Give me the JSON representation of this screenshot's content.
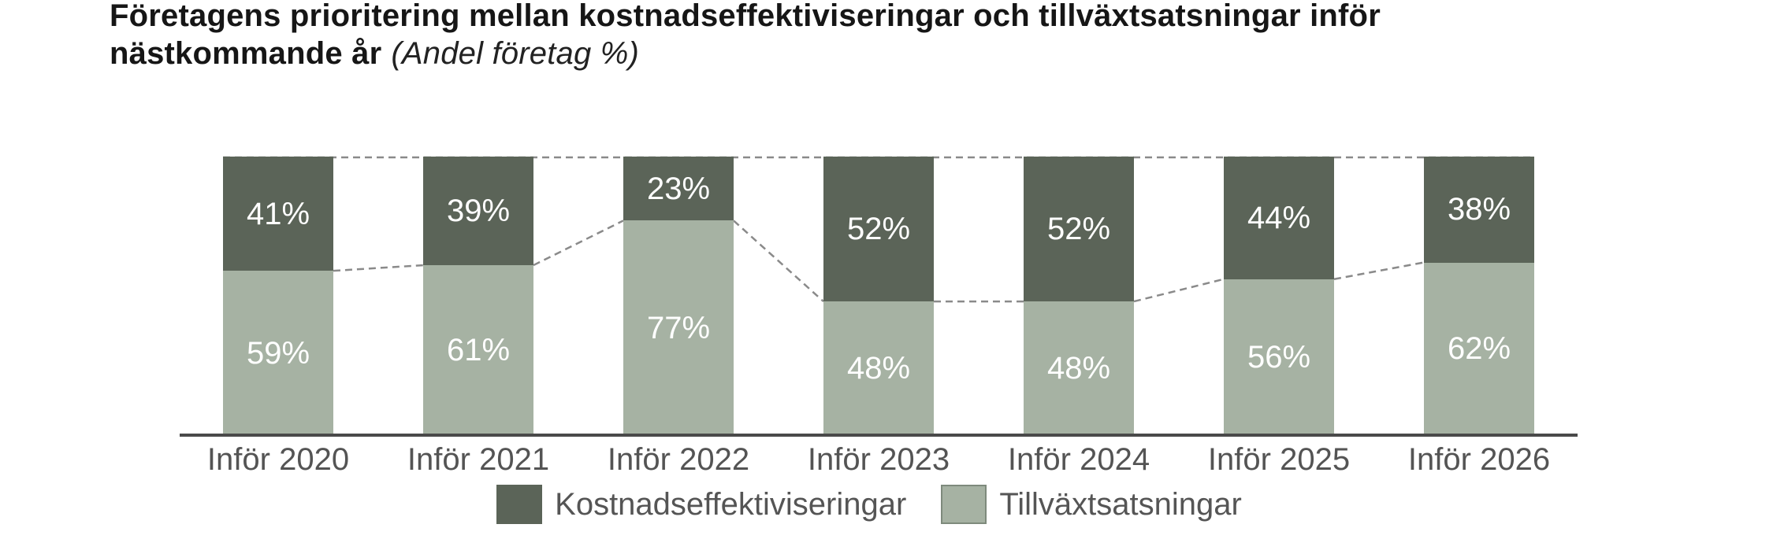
{
  "title": {
    "line1": "Företagens prioritering mellan kostnadseffektiviseringar och tillväxtsatsningar inför",
    "line2_bold": "nästkommande år",
    "line2_note": "(Andel företag %)"
  },
  "chart_data": {
    "type": "bar",
    "variant": "stacked-100-percent",
    "title": "Företagens prioritering mellan kostnadseffektiviseringar och tillväxtsatsningar inför nästkommande år",
    "subtitle": "(Andel företag %)",
    "categories": [
      "Inför 2020",
      "Inför 2021",
      "Inför 2022",
      "Inför 2023",
      "Inför 2024",
      "Inför 2025",
      "Inför 2026"
    ],
    "series": [
      {
        "name": "Kostnadseffektiviseringar",
        "slug": "kostnadseffektiviseringar",
        "color": "#5b6458",
        "values": [
          41,
          39,
          23,
          52,
          52,
          44,
          38
        ]
      },
      {
        "name": "Tillväxtsatsningar",
        "slug": "tillvaxtsatsningar",
        "color": "#a6b2a3",
        "values": [
          59,
          61,
          77,
          48,
          48,
          56,
          62
        ]
      }
    ],
    "value_suffix": "%",
    "ylim": [
      0,
      100
    ],
    "grid": "off",
    "legend_position": "bottom",
    "annotations": "dashed gray connectors link stack boundaries between adjacent bars; dashed line across bar tops at 100%",
    "colors": {
      "bar_value_label": "#ffffff",
      "connector_line": "#8a8a8a",
      "axis_line": "#4a4a4a",
      "tick_label": "#545454",
      "legend_text": "#555555",
      "legend_light_swatch_border": "#7e8a7c"
    }
  }
}
